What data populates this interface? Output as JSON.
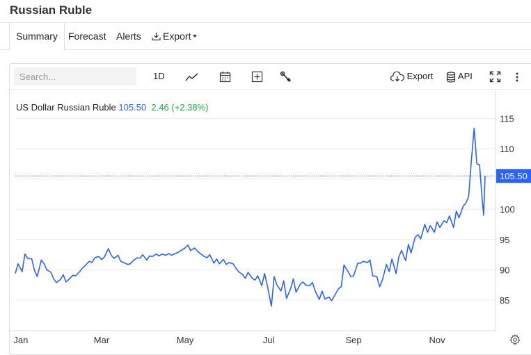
{
  "page": {
    "title": "Russian Ruble"
  },
  "tabs": [
    {
      "label": "Summary",
      "active": true
    },
    {
      "label": "Forecast"
    },
    {
      "label": "Alerts"
    },
    {
      "label": "Export"
    }
  ],
  "toolbar": {
    "search_placeholder": "Search...",
    "interval": "1D",
    "export_label": "Export",
    "api_label": "API",
    "icons": [
      "line-chart-icon",
      "calendar-icon",
      "add-indicator-icon",
      "wrench-icon",
      "cloud-download-icon",
      "database-icon",
      "fullscreen-icon",
      "more-vertical-icon",
      "gear-icon"
    ]
  },
  "legend": {
    "name": "US Dollar Russian Ruble",
    "price": "105.50",
    "change": "2.46 (+2.38%)",
    "price_color": "#2962ff",
    "change_color": "#22ab44"
  },
  "chart_data": {
    "type": "line",
    "series_name": "US Dollar Russian Ruble",
    "line_color": "#2962ff",
    "last_value": 105.5,
    "last_value_label": "105.50",
    "ylim": [
      80,
      117
    ],
    "yticks": [
      85,
      90,
      95,
      100,
      105,
      110,
      115
    ],
    "ytick_labels": [
      "85",
      "90",
      "95",
      "100",
      "105",
      "110",
      "115"
    ],
    "xlim": [
      "2022-12-28",
      "2023-12-06"
    ],
    "xticks": [
      "2023-01-01",
      "2023-03-01",
      "2023-05-01",
      "2023-07-01",
      "2023-09-01",
      "2023-11-01"
    ],
    "xtick_labels": [
      "Jan",
      "Mar",
      "May",
      "Jul",
      "Sep",
      "Nov"
    ],
    "grid": "horizontal",
    "points": [
      [
        "2022-12-28",
        89.4
      ],
      [
        "2022-12-30",
        91.0
      ],
      [
        "2023-01-02",
        89.7
      ],
      [
        "2023-01-04",
        92.6
      ],
      [
        "2023-01-06",
        91.9
      ],
      [
        "2023-01-09",
        91.8
      ],
      [
        "2023-01-11",
        89.9
      ],
      [
        "2023-01-13",
        88.9
      ],
      [
        "2023-01-16",
        91.6
      ],
      [
        "2023-01-18",
        91.0
      ],
      [
        "2023-01-20",
        90.0
      ],
      [
        "2023-01-23",
        89.6
      ],
      [
        "2023-01-25",
        88.5
      ],
      [
        "2023-01-27",
        87.9
      ],
      [
        "2023-01-30",
        88.4
      ],
      [
        "2023-02-01",
        89.2
      ],
      [
        "2023-02-03",
        88.0
      ],
      [
        "2023-02-06",
        88.6
      ],
      [
        "2023-02-08",
        89.1
      ],
      [
        "2023-02-10",
        89.0
      ],
      [
        "2023-02-13",
        89.7
      ],
      [
        "2023-02-15",
        90.3
      ],
      [
        "2023-02-17",
        90.7
      ],
      [
        "2023-02-20",
        91.4
      ],
      [
        "2023-02-22",
        91.2
      ],
      [
        "2023-02-24",
        92.0
      ],
      [
        "2023-02-27",
        92.2
      ],
      [
        "2023-03-01",
        91.7
      ],
      [
        "2023-03-03",
        92.1
      ],
      [
        "2023-03-06",
        93.5
      ],
      [
        "2023-03-08",
        92.4
      ],
      [
        "2023-03-10",
        91.9
      ],
      [
        "2023-03-13",
        92.4
      ],
      [
        "2023-03-15",
        91.4
      ],
      [
        "2023-03-17",
        91.2
      ],
      [
        "2023-03-20",
        90.9
      ],
      [
        "2023-03-22",
        91.0
      ],
      [
        "2023-03-24",
        91.5
      ],
      [
        "2023-03-27",
        92.0
      ],
      [
        "2023-03-29",
        91.9
      ],
      [
        "2023-03-31",
        92.5
      ],
      [
        "2023-04-03",
        91.6
      ],
      [
        "2023-04-05",
        92.3
      ],
      [
        "2023-04-07",
        92.2
      ],
      [
        "2023-04-10",
        92.6
      ],
      [
        "2023-04-12",
        92.3
      ],
      [
        "2023-04-14",
        92.6
      ],
      [
        "2023-04-17",
        92.4
      ],
      [
        "2023-04-19",
        92.7
      ],
      [
        "2023-04-21",
        92.4
      ],
      [
        "2023-04-24",
        92.7
      ],
      [
        "2023-04-26",
        92.9
      ],
      [
        "2023-04-28",
        93.2
      ],
      [
        "2023-05-01",
        93.6
      ],
      [
        "2023-05-03",
        94.1
      ],
      [
        "2023-05-05",
        93.2
      ],
      [
        "2023-05-08",
        93.6
      ],
      [
        "2023-05-10",
        93.1
      ],
      [
        "2023-05-12",
        92.7
      ],
      [
        "2023-05-15",
        92.2
      ],
      [
        "2023-05-17",
        92.0
      ],
      [
        "2023-05-19",
        92.5
      ],
      [
        "2023-05-22",
        91.1
      ],
      [
        "2023-05-24",
        91.8
      ],
      [
        "2023-05-26",
        91.0
      ],
      [
        "2023-05-29",
        91.7
      ],
      [
        "2023-05-31",
        90.9
      ],
      [
        "2023-06-02",
        91.2
      ],
      [
        "2023-06-05",
        91.0
      ],
      [
        "2023-06-07",
        90.3
      ],
      [
        "2023-06-09",
        89.7
      ],
      [
        "2023-06-12",
        89.2
      ],
      [
        "2023-06-14",
        88.6
      ],
      [
        "2023-06-16",
        89.6
      ],
      [
        "2023-06-19",
        88.6
      ],
      [
        "2023-06-21",
        88.3
      ],
      [
        "2023-06-23",
        89.0
      ],
      [
        "2023-06-26",
        87.4
      ],
      [
        "2023-06-28",
        89.4
      ],
      [
        "2023-06-30",
        87.4
      ],
      [
        "2023-07-03",
        84.0
      ],
      [
        "2023-07-05",
        88.9
      ],
      [
        "2023-07-07",
        87.5
      ],
      [
        "2023-07-10",
        86.5
      ],
      [
        "2023-07-12",
        88.2
      ],
      [
        "2023-07-14",
        85.3
      ],
      [
        "2023-07-17",
        86.9
      ],
      [
        "2023-07-19",
        88.5
      ],
      [
        "2023-07-21",
        86.3
      ],
      [
        "2023-07-24",
        87.6
      ],
      [
        "2023-07-26",
        88.0
      ],
      [
        "2023-07-28",
        87.5
      ],
      [
        "2023-07-31",
        87.4
      ],
      [
        "2023-08-02",
        87.9
      ],
      [
        "2023-08-04",
        86.5
      ],
      [
        "2023-08-07",
        85.1
      ],
      [
        "2023-08-09",
        86.5
      ],
      [
        "2023-08-11",
        85.2
      ],
      [
        "2023-08-14",
        85.5
      ],
      [
        "2023-08-16",
        84.9
      ],
      [
        "2023-08-18",
        85.7
      ],
      [
        "2023-08-21",
        86.9
      ],
      [
        "2023-08-23",
        87.2
      ],
      [
        "2023-08-25",
        90.8
      ],
      [
        "2023-08-28",
        89.7
      ],
      [
        "2023-08-30",
        88.9
      ],
      [
        "2023-09-01",
        89.0
      ],
      [
        "2023-09-04",
        91.1
      ],
      [
        "2023-09-06",
        91.1
      ],
      [
        "2023-09-08",
        91.4
      ],
      [
        "2023-09-11",
        91.2
      ],
      [
        "2023-09-13",
        91.6
      ],
      [
        "2023-09-15",
        89.0
      ],
      [
        "2023-09-18",
        88.9
      ],
      [
        "2023-09-20",
        87.2
      ],
      [
        "2023-09-22",
        88.3
      ],
      [
        "2023-09-25",
        90.9
      ],
      [
        "2023-09-27",
        89.7
      ],
      [
        "2023-09-29",
        91.8
      ],
      [
        "2023-10-02",
        89.4
      ],
      [
        "2023-10-04",
        92.1
      ],
      [
        "2023-10-06",
        93.2
      ],
      [
        "2023-10-09",
        91.5
      ],
      [
        "2023-10-11",
        94.2
      ],
      [
        "2023-10-13",
        92.8
      ],
      [
        "2023-10-16",
        95.4
      ],
      [
        "2023-10-18",
        95.8
      ],
      [
        "2023-10-20",
        95.1
      ],
      [
        "2023-10-23",
        97.5
      ],
      [
        "2023-10-25",
        96.2
      ],
      [
        "2023-10-27",
        97.3
      ],
      [
        "2023-10-30",
        96.2
      ],
      [
        "2023-11-01",
        97.9
      ],
      [
        "2023-11-03",
        97.0
      ],
      [
        "2023-11-06",
        98.1
      ],
      [
        "2023-11-08",
        97.8
      ],
      [
        "2023-11-10",
        98.9
      ],
      [
        "2023-11-13",
        97.0
      ],
      [
        "2023-11-15",
        99.7
      ],
      [
        "2023-11-17",
        98.6
      ],
      [
        "2023-11-20",
        100.5
      ],
      [
        "2023-11-22",
        101.0
      ],
      [
        "2023-11-24",
        102.1
      ],
      [
        "2023-11-26",
        108.0
      ],
      [
        "2023-11-28",
        113.4
      ],
      [
        "2023-11-30",
        107.5
      ],
      [
        "2023-12-02",
        107.3
      ],
      [
        "2023-12-04",
        101.3
      ],
      [
        "2023-12-05",
        99.0
      ],
      [
        "2023-12-06",
        105.5
      ]
    ]
  }
}
